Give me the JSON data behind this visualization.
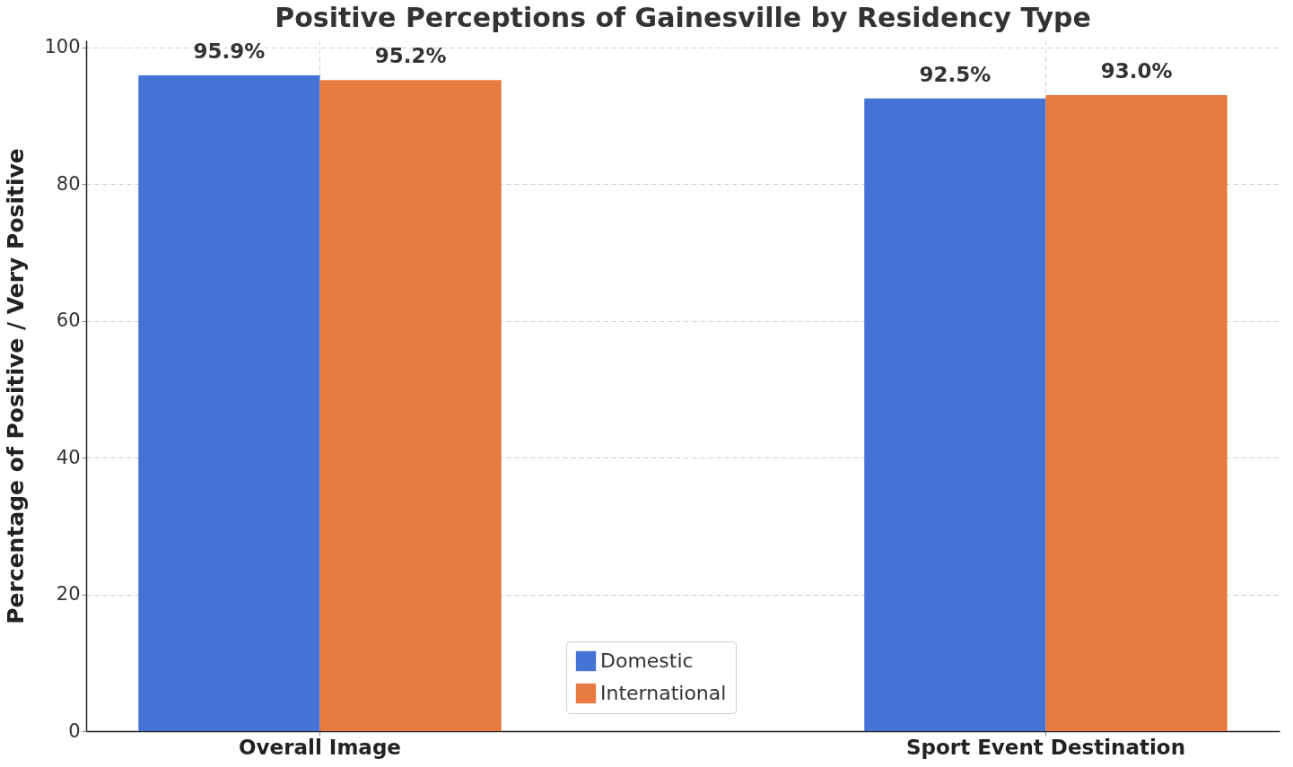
{
  "chart_data": {
    "type": "bar",
    "title": "Positive Perceptions of Gainesville by Residency Type",
    "ylabel": "Percentage of Positive / Very Positive",
    "categories": [
      "Overall Image",
      "Sport Event Destination"
    ],
    "series": [
      {
        "name": "Domestic",
        "color": "#4573d5",
        "values": [
          95.9,
          92.5
        ],
        "value_labels": [
          "95.9%",
          "92.5%"
        ]
      },
      {
        "name": "International",
        "color": "#e87b3f",
        "values": [
          95.2,
          93.0
        ],
        "value_labels": [
          "95.2%",
          "93.0%"
        ]
      }
    ],
    "ylim": [
      0,
      101
    ],
    "yticks": [
      0,
      20,
      40,
      60,
      80,
      100
    ],
    "grid": true,
    "legend": "bottom"
  }
}
